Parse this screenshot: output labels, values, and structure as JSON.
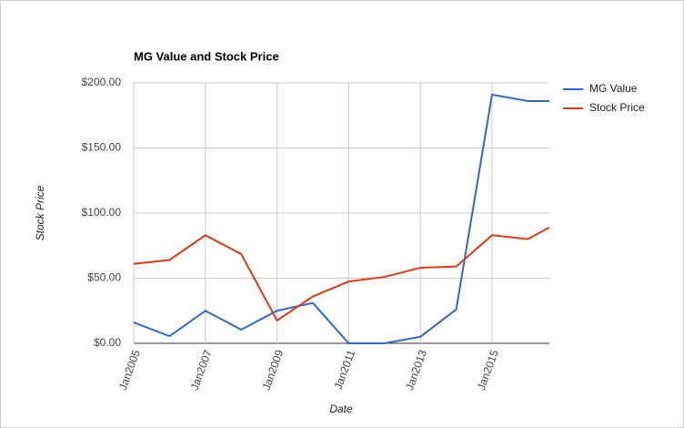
{
  "chart_data": {
    "type": "line",
    "title": "MG Value and Stock Price",
    "x_label": "Date",
    "y_label": "Stock Price",
    "x": [
      2005,
      2006,
      2007,
      2008,
      2009,
      2010,
      2011,
      2012,
      2013,
      2014,
      2015,
      2016,
      2016.6
    ],
    "series": [
      {
        "name": "MG Value",
        "color": "#3366cc",
        "values": [
          16,
          5.5,
          25,
          10.5,
          25,
          31,
          0,
          0,
          5,
          26,
          191,
          186,
          186
        ]
      },
      {
        "name": "Stock Price",
        "color": "#dc3912",
        "values": [
          61,
          64,
          83,
          68.5,
          17.5,
          36,
          47.5,
          51,
          58,
          59,
          83,
          80,
          89
        ]
      }
    ],
    "xlim": [
      2005,
      2016.6
    ],
    "xticks": [
      {
        "value": 2005,
        "label": "Jan2005"
      },
      {
        "value": 2007,
        "label": "Jan2007"
      },
      {
        "value": 2009,
        "label": "Jan2009"
      },
      {
        "value": 2011,
        "label": "Jan2011"
      },
      {
        "value": 2013,
        "label": "Jan2013"
      },
      {
        "value": 2015,
        "label": "Jan2015"
      }
    ],
    "ylim": [
      0,
      200
    ],
    "yticks": [
      {
        "value": 0,
        "label": "$0.00"
      },
      {
        "value": 50,
        "label": "$50.00"
      },
      {
        "value": 100,
        "label": "$100.00"
      },
      {
        "value": 150,
        "label": "$150.00"
      },
      {
        "value": 200,
        "label": "$200.00"
      }
    ],
    "grid": true,
    "legend": "right"
  }
}
